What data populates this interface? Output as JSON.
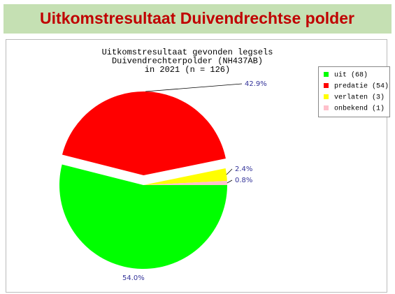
{
  "header": {
    "title": "Uitkomstresultaat Duivendrechtse polder"
  },
  "chart_data": {
    "type": "pie",
    "title": [
      "Uitkomstresultaat gevonden legsels",
      "Duivendrechterpolder (NH437AB)",
      "in 2021 (n = 126)"
    ],
    "categories": [
      "uit (68)",
      "predatie (54)",
      "verlaten (3)",
      "onbekend (1)"
    ],
    "values": [
      54.0,
      42.9,
      2.4,
      0.8
    ],
    "value_labels": [
      "54.0%",
      "42.9%",
      "2.4%",
      "0.8%"
    ],
    "colors": [
      "#00ff00",
      "#ff0000",
      "#ffff00",
      "#ffc0cb"
    ],
    "legend": "top-right"
  }
}
